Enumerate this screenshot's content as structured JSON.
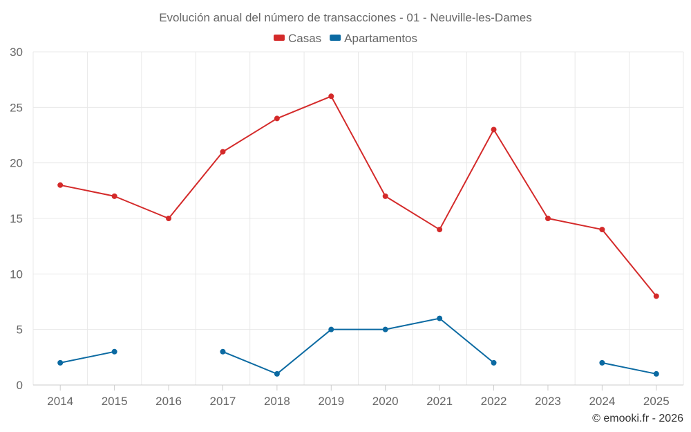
{
  "chart_data": {
    "type": "line",
    "title": "Evolución anual del número de transacciones - 01 - Neuville-les-Dames",
    "categories": [
      "2014",
      "2015",
      "2016",
      "2017",
      "2018",
      "2019",
      "2020",
      "2021",
      "2022",
      "2023",
      "2024",
      "2025"
    ],
    "series": [
      {
        "name": "Casas",
        "color": "#d42a2a",
        "values": [
          18,
          17,
          15,
          21,
          24,
          26,
          17,
          14,
          23,
          15,
          14,
          8
        ]
      },
      {
        "name": "Apartamentos",
        "color": "#0b6aa2",
        "values": [
          2,
          3,
          null,
          3,
          1,
          5,
          5,
          6,
          2,
          null,
          2,
          1
        ]
      }
    ],
    "ylim": [
      0,
      30
    ],
    "yticks": [
      0,
      5,
      10,
      15,
      20,
      25,
      30
    ],
    "grid": true,
    "legend": "top-center"
  },
  "credit": "© emooki.fr - 2026"
}
